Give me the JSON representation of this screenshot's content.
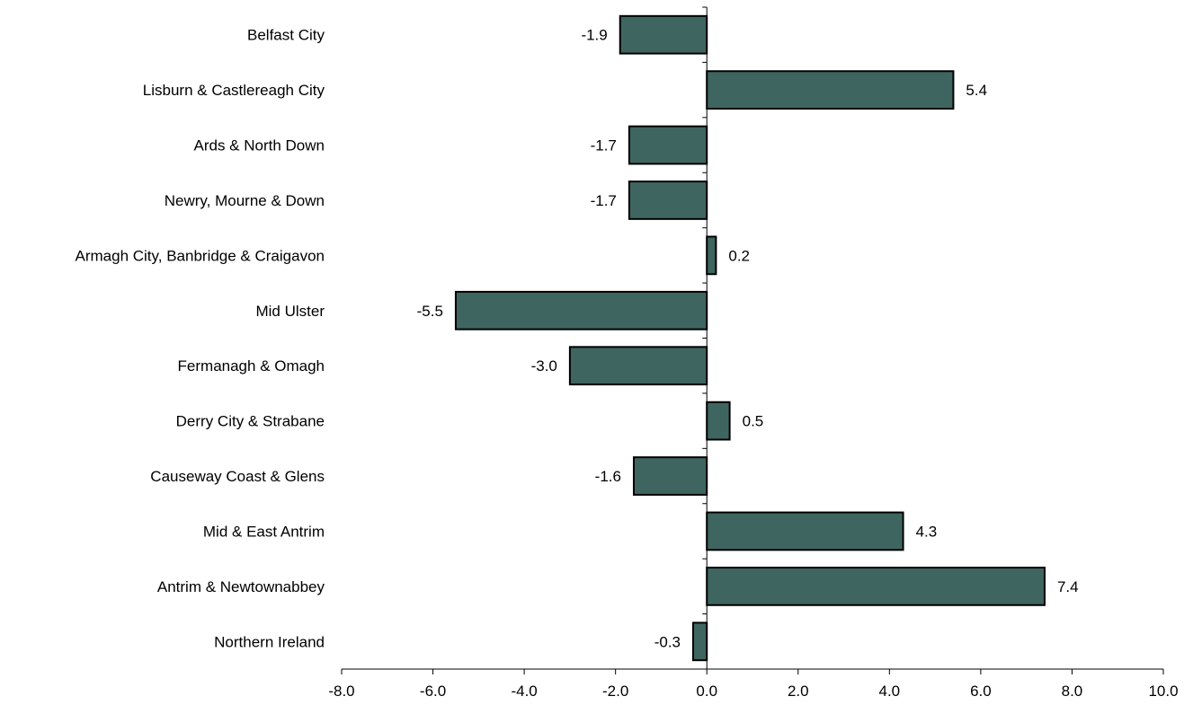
{
  "chart_data": {
    "type": "bar",
    "orientation": "horizontal",
    "categories": [
      "Belfast City",
      "Lisburn & Castlereagh City",
      "Ards & North Down",
      "Newry, Mourne & Down",
      "Armagh City, Banbridge & Craigavon",
      "Mid Ulster",
      "Fermanagh & Omagh",
      "Derry City & Strabane",
      "Causeway Coast & Glens",
      "Mid & East Antrim",
      "Antrim & Newtownabbey",
      "Northern Ireland"
    ],
    "values": [
      -1.9,
      5.4,
      -1.7,
      -1.7,
      0.2,
      -5.5,
      -3.0,
      0.5,
      -1.6,
      4.3,
      7.4,
      -0.3
    ],
    "value_labels": [
      "-1.9",
      "5.4",
      "-1.7",
      "-1.7",
      "0.2",
      "-5.5",
      "-3.0",
      "0.5",
      "-1.6",
      "4.3",
      "7.4",
      "-0.3"
    ],
    "xlim": [
      -8.0,
      10.0
    ],
    "x_ticks": [
      -8.0,
      -6.0,
      -4.0,
      -2.0,
      0.0,
      2.0,
      4.0,
      6.0,
      8.0,
      10.0
    ],
    "x_tick_labels": [
      "-8.0",
      "-6.0",
      "-4.0",
      "-2.0",
      "0.0",
      "2.0",
      "4.0",
      "6.0",
      "8.0",
      "10.0"
    ],
    "bar_color": "#3f6560",
    "bar_edge_color": "#000000",
    "grid": false,
    "legend": "none"
  }
}
